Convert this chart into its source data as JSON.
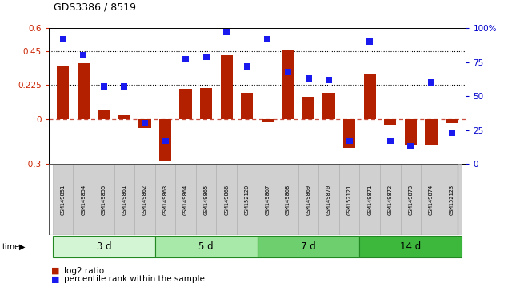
{
  "title": "GDS3386 / 8519",
  "samples": [
    "GSM149851",
    "GSM149854",
    "GSM149855",
    "GSM149861",
    "GSM149862",
    "GSM149863",
    "GSM149864",
    "GSM149865",
    "GSM149866",
    "GSM152120",
    "GSM149867",
    "GSM149868",
    "GSM149869",
    "GSM149870",
    "GSM152121",
    "GSM149871",
    "GSM149872",
    "GSM149873",
    "GSM149874",
    "GSM152123"
  ],
  "log2_ratio": [
    0.35,
    0.37,
    0.055,
    0.025,
    -0.06,
    -0.28,
    0.2,
    0.205,
    0.42,
    0.175,
    -0.025,
    0.46,
    0.145,
    0.175,
    -0.19,
    0.3,
    -0.04,
    -0.175,
    -0.175,
    -0.03
  ],
  "percentile_rank": [
    92,
    80,
    57,
    57,
    30,
    17,
    77,
    79,
    97,
    72,
    92,
    68,
    63,
    62,
    17,
    90,
    17,
    13,
    60,
    23
  ],
  "groups": [
    {
      "label": "3 d",
      "start": 0,
      "end": 5,
      "color": "#d4f5d4"
    },
    {
      "label": "5 d",
      "start": 5,
      "end": 10,
      "color": "#a8e8a8"
    },
    {
      "label": "7 d",
      "start": 10,
      "end": 15,
      "color": "#6dcf6d"
    },
    {
      "label": "14 d",
      "start": 15,
      "end": 20,
      "color": "#3db83d"
    }
  ],
  "ylim_left": [
    -0.3,
    0.6
  ],
  "ylim_right": [
    0,
    100
  ],
  "yticks_left": [
    -0.3,
    0.0,
    0.225,
    0.45,
    0.6
  ],
  "yticks_right": [
    0,
    25,
    50,
    75,
    100
  ],
  "ytick_labels_left": [
    "-0.3",
    "0",
    "0.225",
    "0.45",
    "0.6"
  ],
  "ytick_labels_right": [
    "0",
    "25",
    "50",
    "75",
    "100%"
  ],
  "hlines": [
    0.225,
    0.45
  ],
  "bar_color": "#b22000",
  "square_color": "#1a1aee",
  "zero_line_color": "#c03020",
  "background_color": "#ffffff",
  "legend_log2": "log2 ratio",
  "legend_pct": "percentile rank within the sample",
  "cell_color": "#d0d0d0",
  "cell_edge_color": "#aaaaaa"
}
